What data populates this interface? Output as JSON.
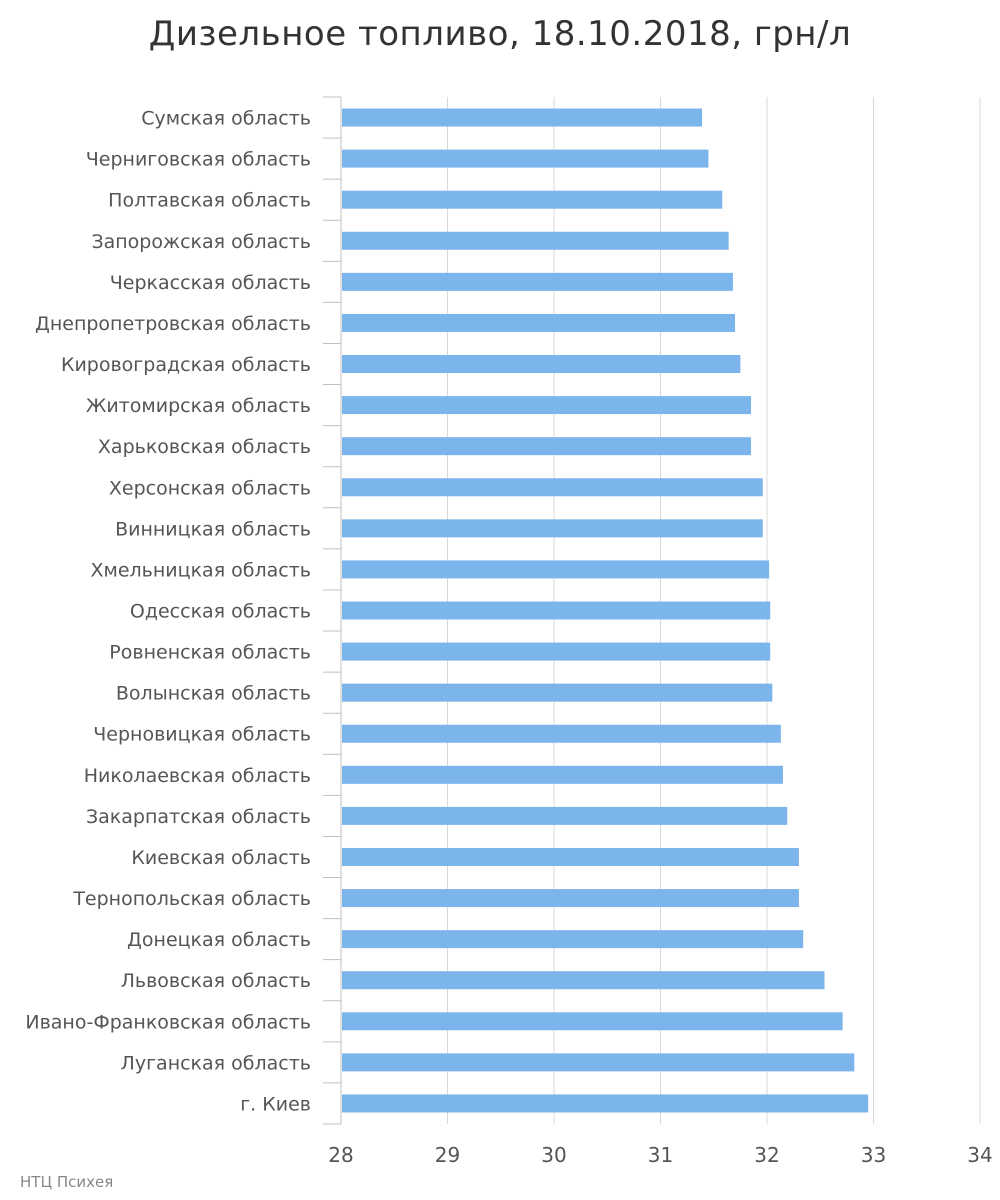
{
  "chart_data": {
    "type": "bar",
    "orientation": "horizontal",
    "title": "Дизельное топливо, 18.10.2018, грн/л",
    "categories": [
      "Сумская область",
      "Черниговская область",
      "Полтавская область",
      "Запорожская область",
      "Черкасская область",
      "Днепропетровская область",
      "Кировоградская область",
      "Житомирская область",
      "Харьковская область",
      "Херсонская область",
      "Винницкая область",
      "Хмельницкая область",
      "Одесская область",
      "Ровненская область",
      "Волынская область",
      "Черновицкая область",
      "Николаевская область",
      "Закарпатская область",
      "Киевская область",
      "Тернопольская область",
      "Донецкая область",
      "Львовская область",
      "Ивано-Франковская область",
      "Луганская область",
      "г. Киев"
    ],
    "values": [
      31.39,
      31.45,
      31.58,
      31.64,
      31.68,
      31.7,
      31.75,
      31.85,
      31.85,
      31.96,
      31.96,
      32.02,
      32.03,
      32.03,
      32.05,
      32.13,
      32.15,
      32.19,
      32.3,
      32.3,
      32.34,
      32.54,
      32.71,
      32.82,
      32.95
    ],
    "xlim": [
      28,
      34
    ],
    "xticks": [
      "28",
      "29",
      "30",
      "31",
      "32",
      "33",
      "34"
    ],
    "grid": true,
    "bar_color": "#7cb5ec"
  },
  "footer": {
    "credit": "НТЦ Психея"
  }
}
